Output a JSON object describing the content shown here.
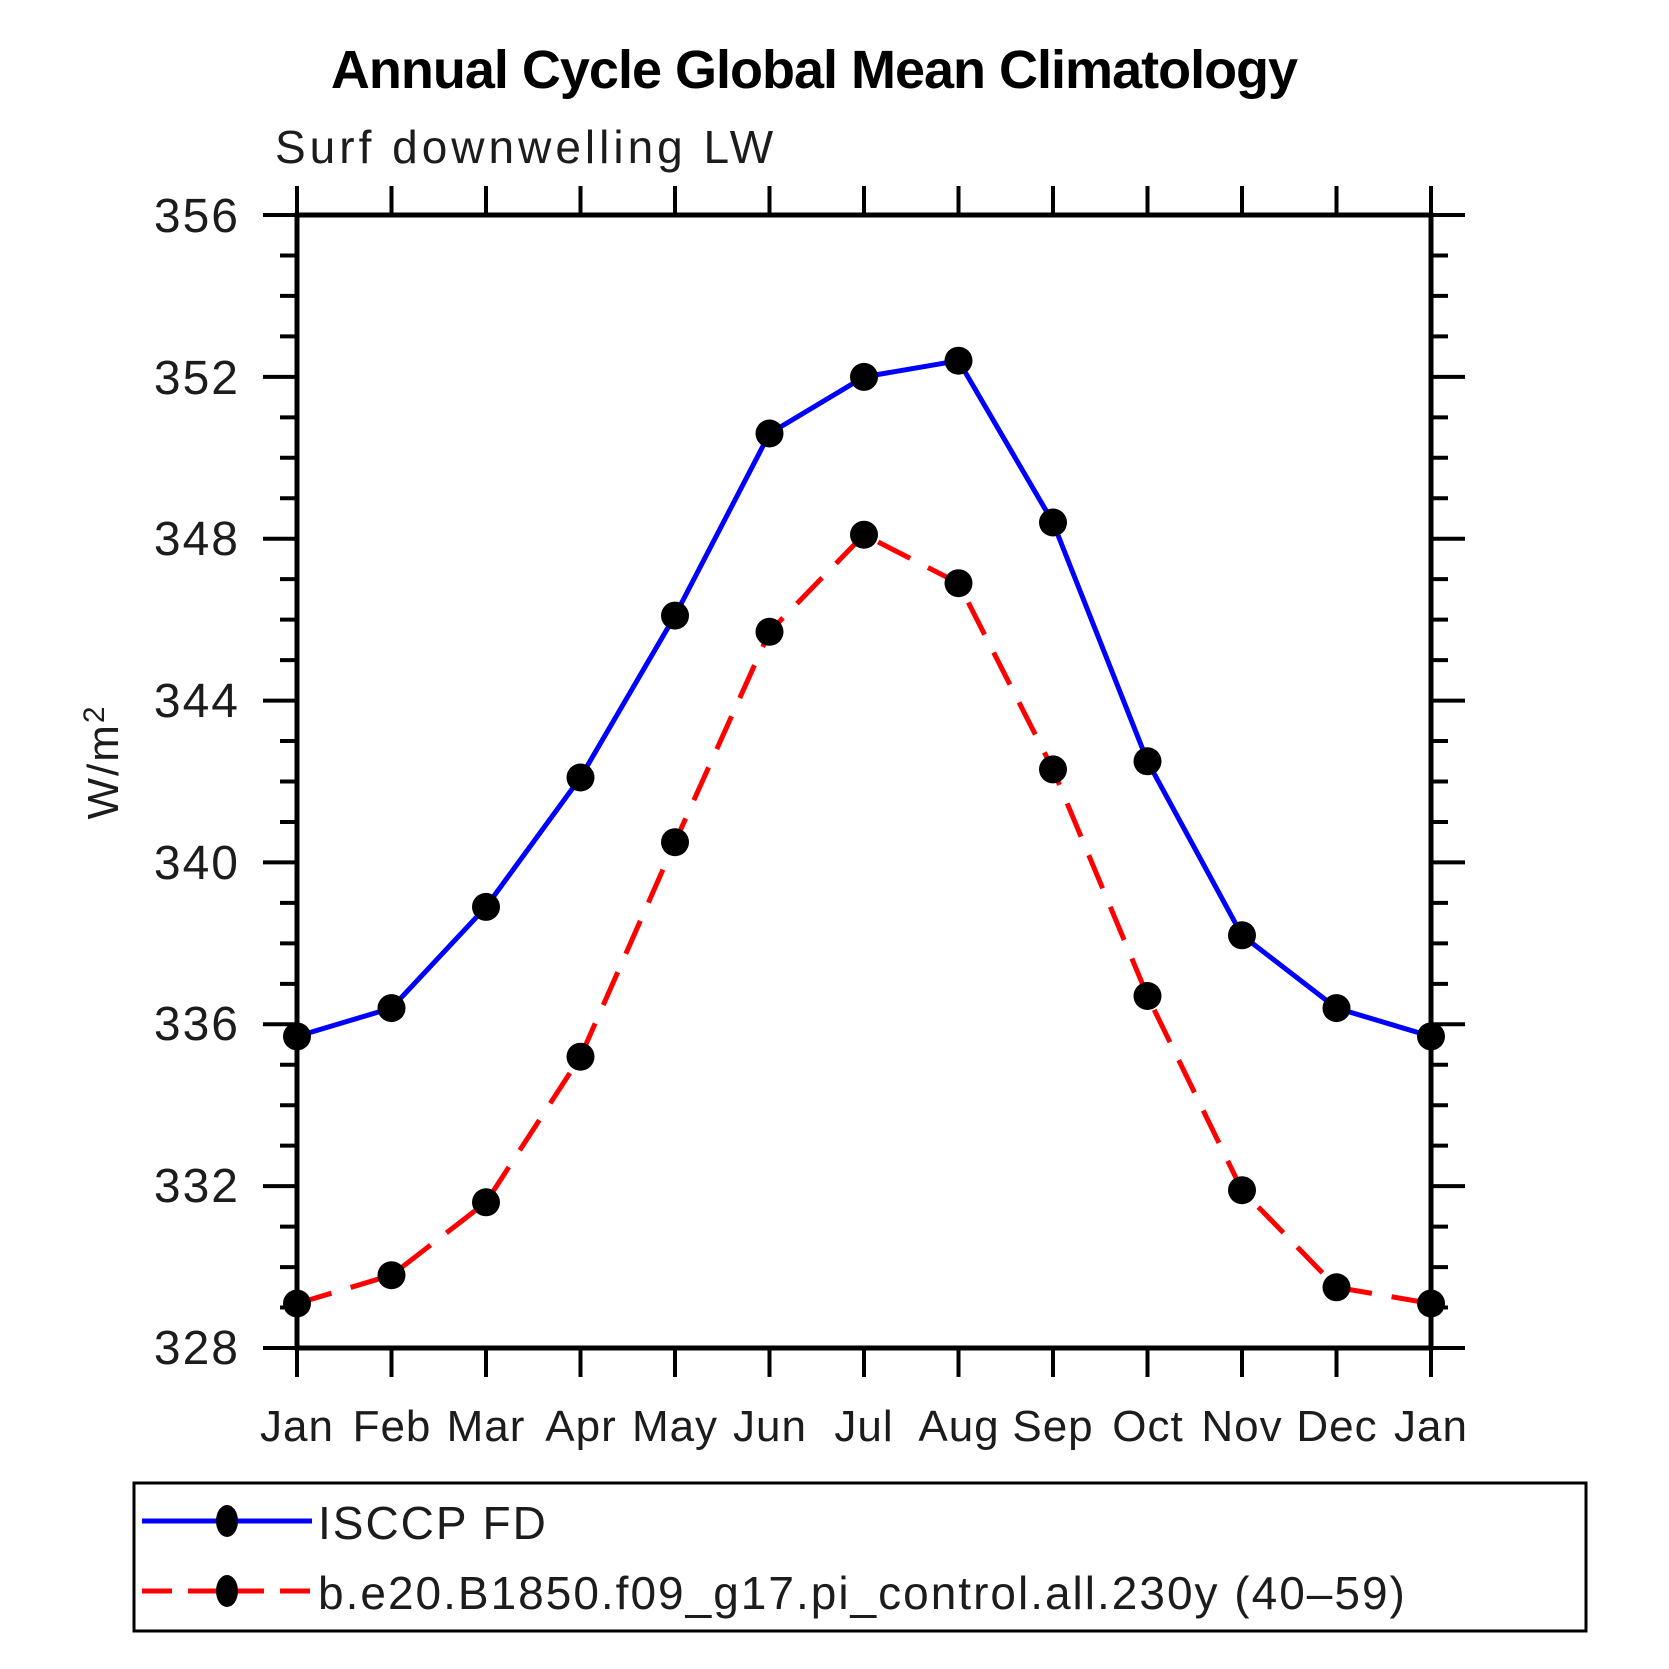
{
  "page": {
    "background": "#ffffff"
  },
  "header": {
    "title": "Annual Cycle Global Mean Climatology",
    "subtitle": "Surf downwelling LW"
  },
  "axes": {
    "y_label": "W/m",
    "y_label_sup": "2",
    "y_tick_labels": [
      "356",
      "352",
      "348",
      "344",
      "340",
      "336",
      "332",
      "328"
    ],
    "month_labels": [
      "Jan",
      "Feb",
      "Mar",
      "Apr",
      "May",
      "Jun",
      "Jul",
      "Aug",
      "Sep",
      "Oct",
      "Nov",
      "Dec",
      "Jan"
    ]
  },
  "legend": {
    "entries": [
      {
        "label": "ISCCP FD",
        "color": "#0000ff",
        "style": "solid",
        "marker": "dot"
      },
      {
        "label": "b.e20.B1850.f09_g17.pi_control.all.230y (40–59)",
        "color": "#ff0000",
        "style": "dashed",
        "marker": "dot"
      }
    ]
  },
  "chart_data": {
    "type": "line",
    "title": "Annual Cycle Global Mean Climatology",
    "subtitle": "Surf downwelling LW",
    "xlabel": "",
    "ylabel": "W/m²",
    "x_categories": [
      "Jan",
      "Feb",
      "Mar",
      "Apr",
      "May",
      "Jun",
      "Jul",
      "Aug",
      "Sep",
      "Oct",
      "Nov",
      "Dec",
      "Jan"
    ],
    "ylim": [
      328,
      356
    ],
    "y_major_ticks": [
      328,
      332,
      336,
      340,
      344,
      348,
      352,
      356
    ],
    "y_minor_tick_interval": 1,
    "grid": false,
    "legend_position": "bottom",
    "marker_color": "#000000",
    "series": [
      {
        "name": "ISCCP FD",
        "color": "#0000ff",
        "style": "solid",
        "marker": "circle",
        "values": [
          335.7,
          336.4,
          338.9,
          342.1,
          346.1,
          350.6,
          352.0,
          352.4,
          348.4,
          342.5,
          338.2,
          336.4,
          335.7
        ]
      },
      {
        "name": "b.e20.B1850.f09_g17.pi_control.all.230y (40–59)",
        "color": "#ff0000",
        "style": "dashed",
        "marker": "circle",
        "values": [
          329.1,
          329.8,
          331.6,
          335.2,
          340.5,
          345.7,
          348.1,
          346.9,
          342.3,
          336.7,
          331.9,
          329.5,
          329.1
        ]
      }
    ]
  }
}
